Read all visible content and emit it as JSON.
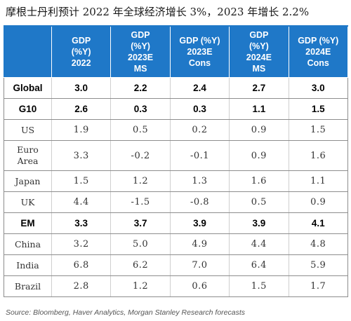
{
  "title": "摩根士丹利预计 2022 年全球经济增长 3%，2023 年增长 2.2%",
  "columns": [
    {
      "lines": [
        "GDP",
        "(%Y)",
        "2022"
      ]
    },
    {
      "lines": [
        "GDP",
        "(%Y)",
        "2023E",
        "MS"
      ]
    },
    {
      "lines": [
        "GDP (%Y)",
        "2023E",
        "Cons"
      ]
    },
    {
      "lines": [
        "GDP",
        "(%Y)",
        "2024E",
        "MS"
      ]
    },
    {
      "lines": [
        "GDP (%Y)",
        "2024E",
        "Cons"
      ]
    }
  ],
  "rows": [
    {
      "label": "Global",
      "bold": true,
      "values": [
        "3.0",
        "2.2",
        "2.4",
        "2.7",
        "3.0"
      ]
    },
    {
      "label": "G10",
      "bold": true,
      "values": [
        "2.6",
        "0.3",
        "0.3",
        "1.1",
        "1.5"
      ]
    },
    {
      "label": "US",
      "bold": false,
      "values": [
        "1.9",
        "0.5",
        "0.2",
        "0.9",
        "1.5"
      ]
    },
    {
      "label_lines": [
        "Euro",
        "Area"
      ],
      "label": "Euro Area",
      "bold": false,
      "tall": true,
      "values": [
        "3.3",
        "-0.2",
        "-0.1",
        "0.9",
        "1.6"
      ]
    },
    {
      "label": "Japan",
      "bold": false,
      "values": [
        "1.5",
        "1.2",
        "1.3",
        "1.6",
        "1.1"
      ]
    },
    {
      "label": "UK",
      "bold": false,
      "values": [
        "4.4",
        "-1.5",
        "-0.8",
        "0.5",
        "0.9"
      ]
    },
    {
      "label": "EM",
      "bold": true,
      "values": [
        "3.3",
        "3.7",
        "3.9",
        "3.9",
        "4.1"
      ]
    },
    {
      "label": "China",
      "bold": false,
      "values": [
        "3.2",
        "5.0",
        "4.9",
        "4.4",
        "4.8"
      ]
    },
    {
      "label": "India",
      "bold": false,
      "values": [
        "6.8",
        "6.2",
        "7.0",
        "6.4",
        "5.9"
      ]
    },
    {
      "label": "Brazil",
      "bold": false,
      "values": [
        "2.8",
        "1.2",
        "0.6",
        "1.5",
        "1.7"
      ]
    }
  ],
  "source": "Source: Bloomberg, Haver Analytics, Morgan Stanley Research forecasts",
  "colors": {
    "header_bg": "#1f78c8",
    "header_text": "#ffffff"
  }
}
